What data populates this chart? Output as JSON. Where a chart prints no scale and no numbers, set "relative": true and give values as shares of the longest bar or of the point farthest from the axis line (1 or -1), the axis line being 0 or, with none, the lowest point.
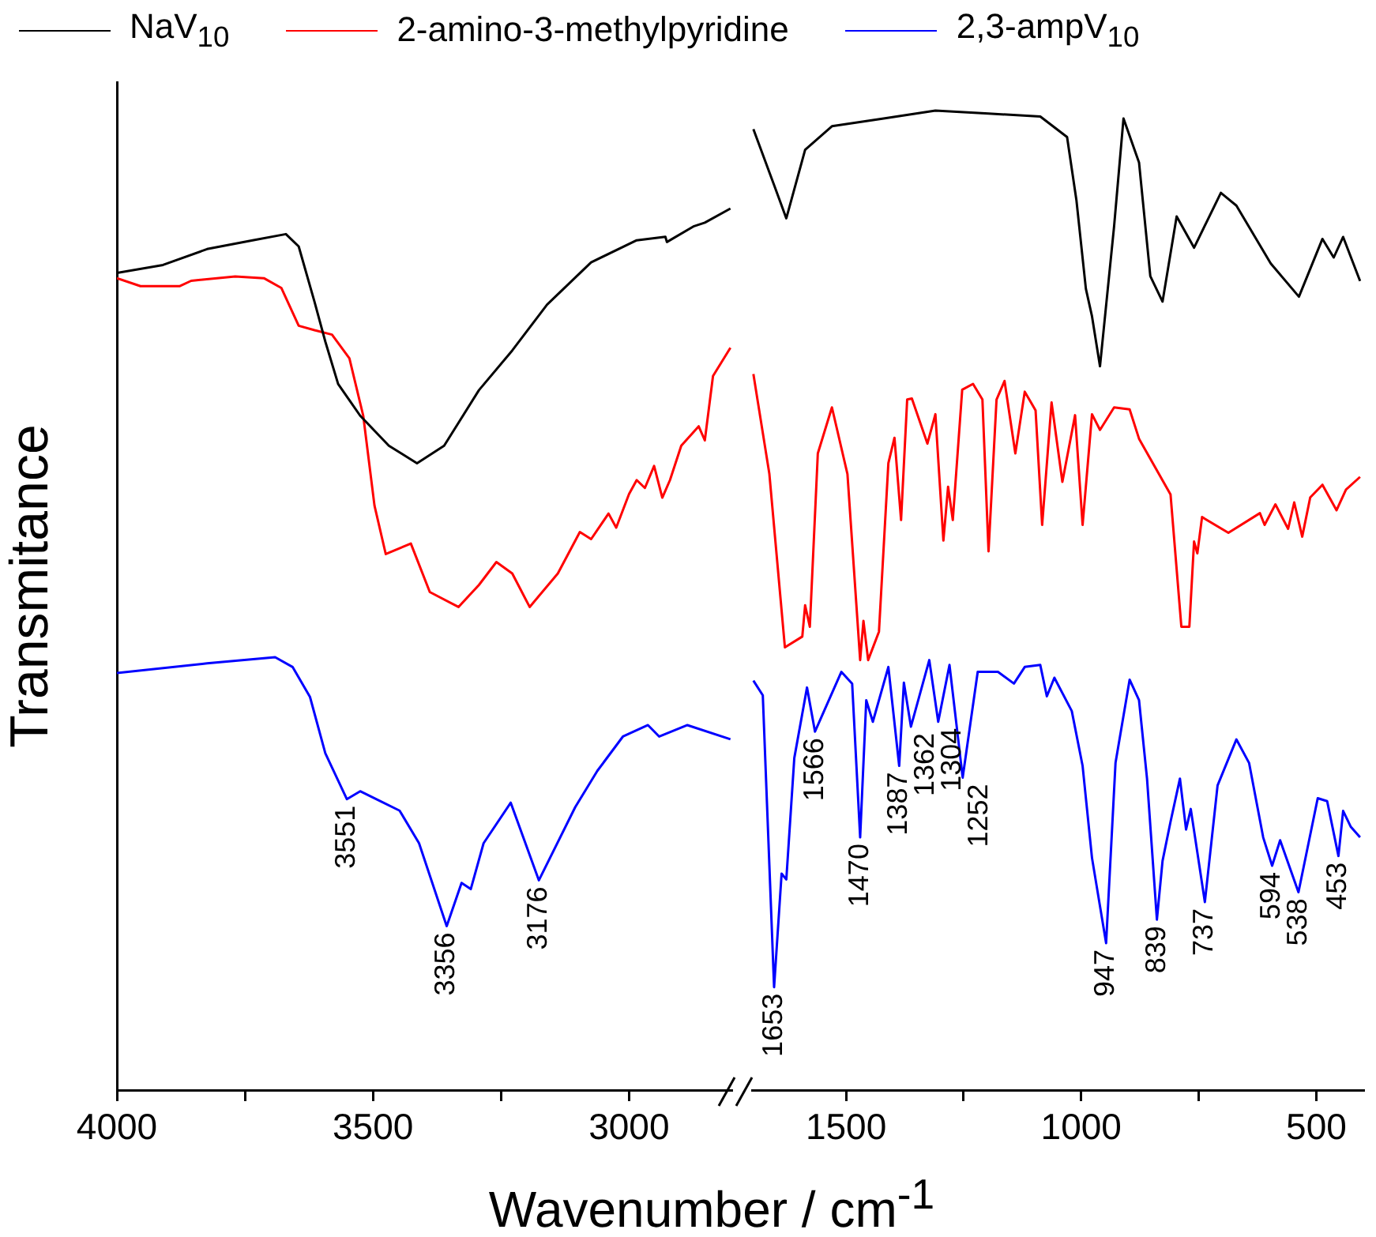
{
  "chart_data": [
    {
      "type": "line",
      "relative": true,
      "ylabel": "Transmitance",
      "xlabel": "Wavenumber / cm$^{-1}$",
      "legend": "top",
      "xlim": [
        4000,
        2800
      ],
      "xticks": [
        4000,
        {
          "value": 3750,
          "label": null
        },
        3500,
        {
          "value": 3250,
          "label": null
        },
        3000
      ],
      "series": [
        {
          "name": "NaV$_{10}$",
          "color": "#000000",
          "x": [
            4000,
            3910,
            3824,
            3735,
            3670,
            3645,
            3614,
            3593,
            3568,
            3525,
            3469,
            3414,
            3361,
            3293,
            3228,
            3160,
            3074,
            2985,
            2929,
            2926,
            2873,
            2852,
            2802
          ],
          "values": [
            0.927,
            0.936,
            0.954,
            0.964,
            0.971,
            0.957,
            0.894,
            0.849,
            0.801,
            0.765,
            0.731,
            0.711,
            0.731,
            0.794,
            0.839,
            0.891,
            0.939,
            0.964,
            0.968,
            0.962,
            0.98,
            0.984,
            1
          ]
        },
        {
          "name": "2-amino-3-methylpyridine",
          "color": "#ff0000",
          "x": [
            4000,
            3954,
            3877,
            3855,
            3769,
            3713,
            3679,
            3645,
            3614,
            3580,
            3546,
            3519,
            3497,
            3475,
            3426,
            3389,
            3333,
            3293,
            3259,
            3228,
            3194,
            3139,
            3096,
            3074,
            3040,
            3025,
            3000,
            2985,
            2969,
            2951,
            2935,
            2920,
            2898,
            2864,
            2852,
            2836,
            2802
          ],
          "values": [
            0.921,
            0.912,
            0.912,
            0.918,
            0.923,
            0.921,
            0.91,
            0.867,
            0.862,
            0.857,
            0.83,
            0.765,
            0.663,
            0.608,
            0.62,
            0.565,
            0.548,
            0.573,
            0.599,
            0.586,
            0.548,
            0.586,
            0.633,
            0.625,
            0.654,
            0.638,
            0.676,
            0.692,
            0.683,
            0.708,
            0.672,
            0.692,
            0.731,
            0.753,
            0.737,
            0.81,
            0.842
          ]
        },
        {
          "name": "2,3-ampV$_{10}$",
          "color": "#0000ff",
          "x": [
            4000,
            3824,
            3691,
            3657,
            3623,
            3593,
            3551,
            3525,
            3448,
            3410,
            3356,
            3327,
            3309,
            3284,
            3231,
            3176,
            3105,
            3062,
            3012,
            2963,
            2941,
            2886,
            2802
          ],
          "values": [
            0.473,
            0.484,
            0.491,
            0.48,
            0.446,
            0.382,
            0.33,
            0.339,
            0.317,
            0.28,
            0.186,
            0.235,
            0.228,
            0.28,
            0.326,
            0.238,
            0.321,
            0.362,
            0.401,
            0.414,
            0.401,
            0.414,
            0.398
          ]
        }
      ],
      "annotations": [
        {
          "text": "3551",
          "x": 3551,
          "y": 0.33
        },
        {
          "text": "3356",
          "x": 3356,
          "y": 0.186
        },
        {
          "text": "3176",
          "x": 3176,
          "y": 0.238
        }
      ]
    },
    {
      "type": "line",
      "relative": true,
      "xlim": [
        1700,
        400
      ],
      "xticks": [
        1500,
        {
          "value": 1250,
          "label": null
        },
        1000,
        {
          "value": 750,
          "label": null
        },
        500
      ],
      "series": [
        {
          "color": "#000000",
          "x": [
            1697,
            1653,
            1627,
            1587,
            1530,
            1420,
            1310,
            1197,
            1087,
            1030,
            1010,
            990,
            977,
            960,
            930,
            910,
            877,
            853,
            827,
            797,
            760,
            703,
            670,
            597,
            537,
            487,
            463,
            443,
            407
          ],
          "values": [
            0.981,
            0.924,
            0.89,
            0.96,
            0.984,
            0.992,
            1,
            0.997,
            0.994,
            0.973,
            0.908,
            0.818,
            0.79,
            0.739,
            0.882,
            0.992,
            0.947,
            0.831,
            0.805,
            0.892,
            0.86,
            0.916,
            0.903,
            0.844,
            0.81,
            0.869,
            0.85,
            0.871,
            0.826
          ]
        },
        {
          "color": "#ff0000",
          "x": [
            1697,
            1663,
            1630,
            1593,
            1587,
            1577,
            1560,
            1530,
            1497,
            1470,
            1463,
            1453,
            1430,
            1410,
            1397,
            1383,
            1370,
            1360,
            1327,
            1310,
            1293,
            1283,
            1273,
            1253,
            1230,
            1210,
            1197,
            1180,
            1163,
            1140,
            1120,
            1097,
            1083,
            1063,
            1040,
            1013,
            997,
            977,
            960,
            930,
            897,
            877,
            810,
            787,
            770,
            760,
            753,
            743,
            687,
            620,
            610,
            587,
            560,
            547,
            530,
            513,
            487,
            457,
            437,
            407
          ],
          "values": [
            0.731,
            0.629,
            0.452,
            0.463,
            0.495,
            0.473,
            0.65,
            0.697,
            0.629,
            0.439,
            0.479,
            0.439,
            0.468,
            0.64,
            0.666,
            0.582,
            0.705,
            0.706,
            0.66,
            0.69,
            0.561,
            0.616,
            0.582,
            0.715,
            0.721,
            0.705,
            0.55,
            0.705,
            0.724,
            0.65,
            0.713,
            0.694,
            0.577,
            0.702,
            0.621,
            0.689,
            0.577,
            0.69,
            0.674,
            0.697,
            0.695,
            0.665,
            0.608,
            0.473,
            0.473,
            0.56,
            0.548,
            0.585,
            0.569,
            0.589,
            0.577,
            0.598,
            0.573,
            0.6,
            0.565,
            0.605,
            0.618,
            0.592,
            0.613,
            0.626
          ]
        },
        {
          "color": "#0000ff",
          "x": [
            1697,
            1677,
            1653,
            1637,
            1627,
            1610,
            1583,
            1566,
            1510,
            1487,
            1470,
            1457,
            1443,
            1410,
            1387,
            1377,
            1362,
            1323,
            1304,
            1280,
            1252,
            1220,
            1177,
            1143,
            1120,
            1087,
            1073,
            1057,
            1020,
            997,
            977,
            947,
            927,
            897,
            877,
            860,
            839,
            827,
            810,
            790,
            777,
            767,
            737,
            710,
            670,
            643,
            613,
            594,
            577,
            538,
            497,
            477,
            453,
            443,
            427,
            407
          ],
          "values": [
            0.418,
            0.403,
            0.105,
            0.221,
            0.215,
            0.339,
            0.411,
            0.366,
            0.427,
            0.415,
            0.258,
            0.398,
            0.376,
            0.432,
            0.331,
            0.416,
            0.371,
            0.439,
            0.376,
            0.434,
            0.319,
            0.427,
            0.427,
            0.415,
            0.432,
            0.434,
            0.402,
            0.421,
            0.387,
            0.331,
            0.237,
            0.15,
            0.334,
            0.419,
            0.398,
            0.318,
            0.174,
            0.234,
            0.274,
            0.318,
            0.266,
            0.287,
            0.192,
            0.311,
            0.358,
            0.334,
            0.258,
            0.229,
            0.255,
            0.202,
            0.298,
            0.295,
            0.239,
            0.285,
            0.269,
            0.258
          ]
        }
      ],
      "annotations": [
        {
          "text": "1653",
          "x": 1653,
          "y": 0.105
        },
        {
          "text": "1566",
          "x": 1566,
          "y": 0.366
        },
        {
          "text": "1470",
          "x": 1470,
          "y": 0.258
        },
        {
          "text": "1387",
          "x": 1387,
          "y": 0.331
        },
        {
          "text": "1362",
          "x": 1362,
          "y": 0.371
        },
        {
          "text": "1304",
          "x": 1304,
          "y": 0.376
        },
        {
          "text": "1252",
          "x": 1252,
          "y": 0.319
        },
        {
          "text": "947",
          "x": 947,
          "y": 0.15
        },
        {
          "text": "839",
          "x": 839,
          "y": 0.174
        },
        {
          "text": "737",
          "x": 737,
          "y": 0.192
        },
        {
          "text": "594",
          "x": 594,
          "y": 0.229
        },
        {
          "text": "538",
          "x": 538,
          "y": 0.202
        },
        {
          "text": "453",
          "x": 453,
          "y": 0.239
        }
      ]
    }
  ]
}
